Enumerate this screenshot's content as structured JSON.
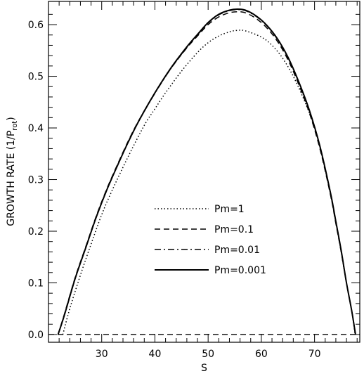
{
  "chart_data": {
    "type": "line",
    "xlabel": "S",
    "ylabel_main": "GROWTH RATE (1/P",
    "ylabel_sub": "rot",
    "ylabel_close": ")",
    "xlim": [
      20,
      78.5
    ],
    "ylim": [
      -0.015,
      0.645
    ],
    "xticks": [
      30,
      40,
      50,
      60,
      70
    ],
    "yticks": [
      0.0,
      0.1,
      0.2,
      0.3,
      0.4,
      0.5,
      0.6
    ],
    "ytick_labels": [
      "0.0",
      "0.1",
      "0.2",
      "0.3",
      "0.4",
      "0.5",
      "0.6"
    ],
    "grid": false,
    "legend_position": "center",
    "series": [
      {
        "name": "Pm=1",
        "style": "dotted",
        "x": [
          22.7,
          24,
          26,
          28,
          30,
          32,
          35,
          38,
          40,
          42,
          45,
          48,
          50,
          52,
          54,
          55.5,
          57,
          60,
          62,
          64,
          66,
          68,
          70,
          72,
          74,
          75,
          76,
          77,
          77.6
        ],
        "y": [
          0.0,
          0.05,
          0.115,
          0.175,
          0.232,
          0.28,
          0.345,
          0.405,
          0.437,
          0.468,
          0.51,
          0.546,
          0.565,
          0.578,
          0.586,
          0.589,
          0.588,
          0.576,
          0.56,
          0.535,
          0.5,
          0.455,
          0.4,
          0.32,
          0.22,
          0.16,
          0.1,
          0.045,
          0.0
        ]
      },
      {
        "name": "Pm=0.1",
        "style": "dashed",
        "x": [
          21.8,
          23,
          25,
          27,
          29,
          31,
          33,
          35,
          37,
          40,
          43,
          46,
          48,
          50,
          52,
          54,
          55.5,
          57,
          59,
          61,
          63,
          65,
          67,
          69,
          71,
          73,
          74,
          75,
          76,
          77,
          77.7
        ],
        "y": [
          0.0,
          0.04,
          0.11,
          0.17,
          0.23,
          0.283,
          0.33,
          0.375,
          0.415,
          0.468,
          0.515,
          0.555,
          0.578,
          0.6,
          0.615,
          0.623,
          0.625,
          0.623,
          0.612,
          0.594,
          0.568,
          0.532,
          0.485,
          0.43,
          0.36,
          0.27,
          0.215,
          0.16,
          0.1,
          0.045,
          0.0
        ]
      },
      {
        "name": "Pm=0.01",
        "style": "dashdot",
        "x": [
          21.8,
          23,
          25,
          27,
          29,
          31,
          33,
          35,
          37,
          40,
          43,
          46,
          48,
          50,
          52,
          54,
          55.5,
          57,
          59,
          61,
          63,
          65,
          67,
          69,
          71,
          73,
          74,
          75,
          76,
          77,
          77.7
        ],
        "y": [
          0.0,
          0.038,
          0.108,
          0.168,
          0.228,
          0.281,
          0.328,
          0.373,
          0.414,
          0.467,
          0.515,
          0.556,
          0.58,
          0.603,
          0.619,
          0.627,
          0.629,
          0.627,
          0.616,
          0.598,
          0.572,
          0.536,
          0.489,
          0.434,
          0.364,
          0.273,
          0.218,
          0.162,
          0.1,
          0.045,
          0.0
        ]
      },
      {
        "name": "Pm=0.001",
        "style": "solid",
        "x": [
          21.8,
          23,
          25,
          27,
          29,
          31,
          33,
          35,
          37,
          40,
          43,
          46,
          48,
          50,
          52,
          54,
          55.5,
          57,
          59,
          61,
          63,
          65,
          67,
          69,
          71,
          73,
          74,
          75,
          76,
          77,
          77.7
        ],
        "y": [
          0.0,
          0.038,
          0.108,
          0.168,
          0.228,
          0.281,
          0.328,
          0.373,
          0.414,
          0.468,
          0.516,
          0.557,
          0.581,
          0.604,
          0.62,
          0.628,
          0.63,
          0.628,
          0.617,
          0.599,
          0.573,
          0.537,
          0.49,
          0.435,
          0.365,
          0.274,
          0.219,
          0.163,
          0.1,
          0.045,
          0.0
        ]
      }
    ],
    "zero_line": {
      "y": 0.0,
      "style": "dashed"
    }
  }
}
